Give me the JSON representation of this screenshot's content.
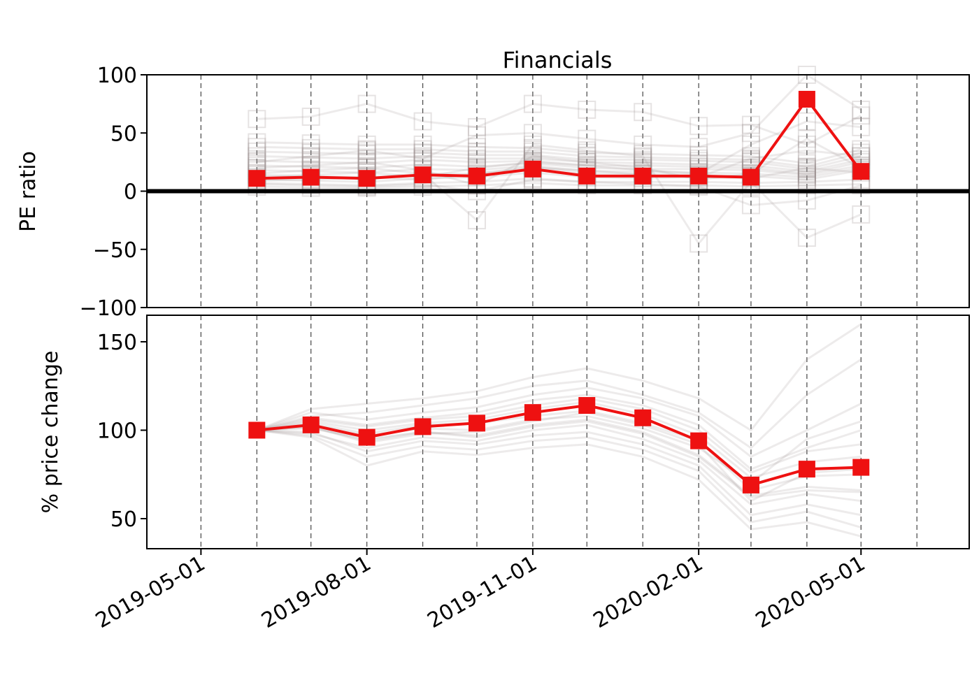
{
  "chart_data": {
    "title": "Financials",
    "dates": [
      "2019-06-01",
      "2019-07-01",
      "2019-08-01",
      "2019-09-01",
      "2019-10-01",
      "2019-11-01",
      "2019-12-01",
      "2020-01-01",
      "2020-02-01",
      "2020-03-01",
      "2020-04-01",
      "2020-05-01"
    ],
    "x_ticks": [
      "2019-05-01",
      "2019-08-01",
      "2019-11-01",
      "2020-02-01",
      "2020-05-01"
    ],
    "vlines": [
      "2019-05-01",
      "2019-06-01",
      "2019-07-01",
      "2019-08-01",
      "2019-09-01",
      "2019-10-01",
      "2019-11-01",
      "2019-12-01",
      "2020-01-01",
      "2020-02-01",
      "2020-03-01",
      "2020-04-01",
      "2020-05-01",
      "2020-06-01"
    ],
    "xlim": [
      "2019-04-01",
      "2020-06-30"
    ],
    "panels": [
      {
        "type": "line",
        "ylabel": "PE ratio",
        "ylim": [
          -100,
          100
        ],
        "yticks": [
          100,
          50,
          0,
          -50,
          -100
        ],
        "ytick_labels": [
          "100",
          "50",
          "0",
          "−50",
          "−100"
        ],
        "zero_line": true,
        "highlight": {
          "color": "#ee1111",
          "marker": "square",
          "values": [
            11,
            12,
            11,
            14,
            13,
            19,
            13,
            13,
            13,
            12,
            79,
            17
          ]
        },
        "background_series": [
          [
            10,
            9,
            8,
            11,
            12,
            16,
            12,
            11,
            12,
            11,
            20,
            16
          ],
          [
            14,
            13,
            12,
            15,
            15,
            21,
            15,
            15,
            14,
            13,
            10,
            18
          ],
          [
            18,
            17,
            16,
            19,
            18,
            22,
            17,
            17,
            16,
            15,
            12,
            20
          ],
          [
            22,
            21,
            20,
            23,
            21,
            24,
            20,
            19,
            19,
            18,
            14,
            22
          ],
          [
            26,
            25,
            24,
            27,
            25,
            26,
            22,
            22,
            21,
            20,
            15,
            25
          ],
          [
            30,
            29,
            28,
            30,
            28,
            28,
            25,
            24,
            23,
            22,
            17,
            27
          ],
          [
            34,
            33,
            32,
            33,
            31,
            31,
            27,
            27,
            26,
            25,
            19,
            30
          ],
          [
            38,
            37,
            36,
            36,
            34,
            34,
            30,
            29,
            28,
            27,
            21,
            33
          ],
          [
            42,
            41,
            40,
            40,
            38,
            37,
            33,
            32,
            31,
            30,
            24,
            36
          ],
          [
            7,
            6,
            5,
            7,
            8,
            11,
            8,
            8,
            8,
            7,
            8,
            10
          ],
          [
            4,
            3,
            3,
            4,
            5,
            7,
            5,
            5,
            5,
            4,
            5,
            6
          ],
          [
            62,
            64,
            75,
            60,
            55,
            75,
            70,
            68,
            56,
            57,
            40,
            65
          ],
          [
            20,
            22,
            25,
            18,
            5,
            30,
            25,
            20,
            10,
            15,
            45,
            20
          ],
          [
            15,
            18,
            20,
            15,
            -25,
            40,
            35,
            30,
            -45,
            8,
            -40,
            -20
          ],
          [
            25,
            30,
            35,
            28,
            48,
            50,
            45,
            40,
            38,
            50,
            100,
            70
          ],
          [
            12,
            14,
            16,
            12,
            20,
            25,
            22,
            18,
            15,
            40,
            60,
            55
          ],
          [
            9,
            10,
            12,
            10,
            15,
            20,
            18,
            14,
            12,
            28,
            35,
            30
          ],
          [
            6,
            5,
            4,
            6,
            0,
            10,
            8,
            6,
            4,
            -12,
            -8,
            5
          ]
        ]
      },
      {
        "type": "line",
        "ylabel": "% price change",
        "ylim": [
          33,
          165
        ],
        "yticks": [
          150,
          100,
          50
        ],
        "ytick_labels": [
          "150",
          "100",
          "50"
        ],
        "zero_line": false,
        "highlight": {
          "color": "#ee1111",
          "marker": "square",
          "values": [
            100,
            103,
            96,
            102,
            104,
            110,
            114,
            107,
            94,
            69,
            78,
            79
          ]
        },
        "background_series": [
          [
            100,
            101,
            95,
            99,
            97,
            103,
            106,
            99,
            86,
            63,
            68,
            66
          ],
          [
            100,
            102,
            94,
            99,
            96,
            102,
            105,
            98,
            85,
            62,
            66,
            65
          ],
          [
            100,
            98,
            90,
            96,
            94,
            100,
            103,
            95,
            83,
            58,
            64,
            60
          ],
          [
            100,
            105,
            100,
            104,
            106,
            112,
            116,
            109,
            97,
            73,
            82,
            85
          ],
          [
            100,
            107,
            103,
            107,
            110,
            117,
            120,
            114,
            103,
            78,
            90,
            100
          ],
          [
            100,
            110,
            106,
            110,
            113,
            120,
            124,
            118,
            108,
            85,
            100,
            115
          ],
          [
            100,
            99,
            88,
            94,
            92,
            97,
            99,
            92,
            80,
            52,
            58,
            52
          ],
          [
            100,
            97,
            85,
            91,
            89,
            94,
            96,
            89,
            77,
            48,
            54,
            45
          ],
          [
            100,
            96,
            80,
            88,
            86,
            90,
            92,
            85,
            72,
            44,
            48,
            40
          ],
          [
            100,
            104,
            98,
            103,
            104,
            108,
            111,
            104,
            94,
            66,
            74,
            75
          ],
          [
            100,
            108,
            110,
            114,
            118,
            125,
            128,
            120,
            110,
            90,
            120,
            140
          ],
          [
            100,
            112,
            115,
            118,
            122,
            130,
            135,
            128,
            118,
            100,
            140,
            160
          ],
          [
            100,
            103,
            97,
            101,
            100,
            106,
            108,
            101,
            90,
            70,
            95,
            105
          ],
          [
            100,
            102,
            93,
            98,
            99,
            105,
            110,
            103,
            92,
            60,
            76,
            78
          ],
          [
            100,
            106,
            102,
            106,
            108,
            114,
            118,
            112,
            100,
            76,
            88,
            92
          ]
        ]
      }
    ]
  }
}
